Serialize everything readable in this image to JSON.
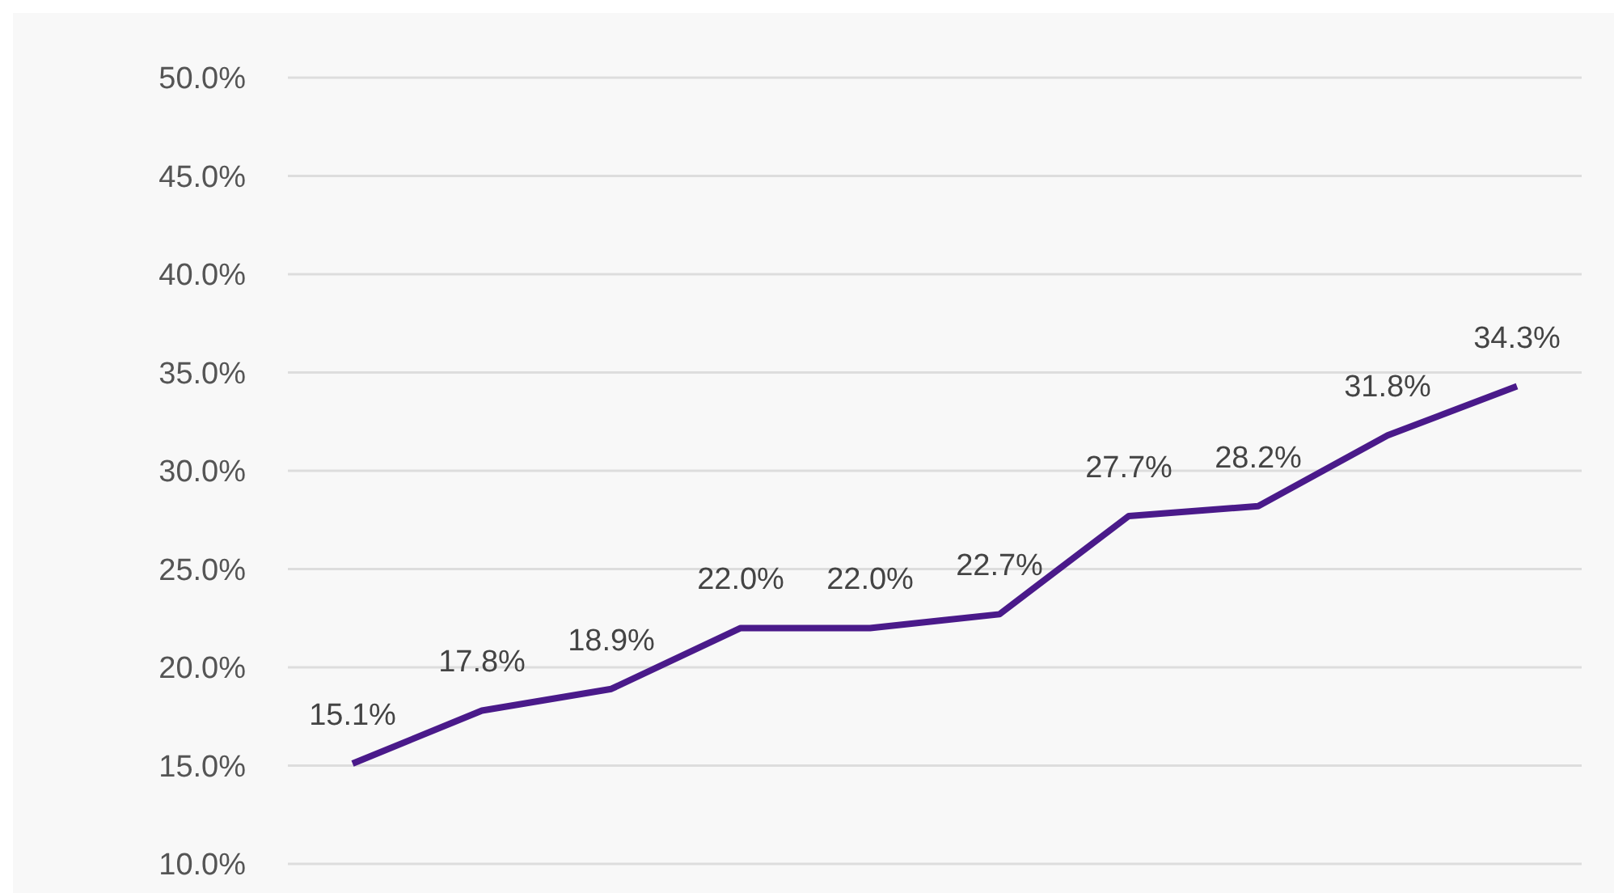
{
  "chart_data": {
    "type": "line",
    "categories": [
      null,
      null,
      null,
      null,
      null,
      null,
      null,
      null,
      null,
      null
    ],
    "series": [
      {
        "color": "#4a1a8a",
        "values": [
          15.1,
          17.8,
          18.9,
          22.0,
          22.0,
          22.7,
          27.7,
          28.2,
          31.8,
          34.3
        ],
        "value_labels": [
          "15.1%",
          "17.8%",
          "18.9%",
          "22.0%",
          "22.0%",
          "22.7%",
          "27.7%",
          "28.2%",
          "31.8%",
          "34.3%"
        ]
      }
    ],
    "ylim": [
      10,
      50
    ],
    "yticks": [
      {
        "value": 10,
        "label": "10.0%"
      },
      {
        "value": 15,
        "label": "15.0%"
      },
      {
        "value": 20,
        "label": "20.0%"
      },
      {
        "value": 25,
        "label": "25.0%"
      },
      {
        "value": 30,
        "label": "30.0%"
      },
      {
        "value": 35,
        "label": "35.0%"
      },
      {
        "value": 40,
        "label": "40.0%"
      },
      {
        "value": 45,
        "label": "45.0%"
      },
      {
        "value": 50,
        "label": "50.0%"
      }
    ],
    "grid": "y",
    "marker": "none",
    "line_style": "solid",
    "legend": false,
    "tick_labels": "y"
  }
}
